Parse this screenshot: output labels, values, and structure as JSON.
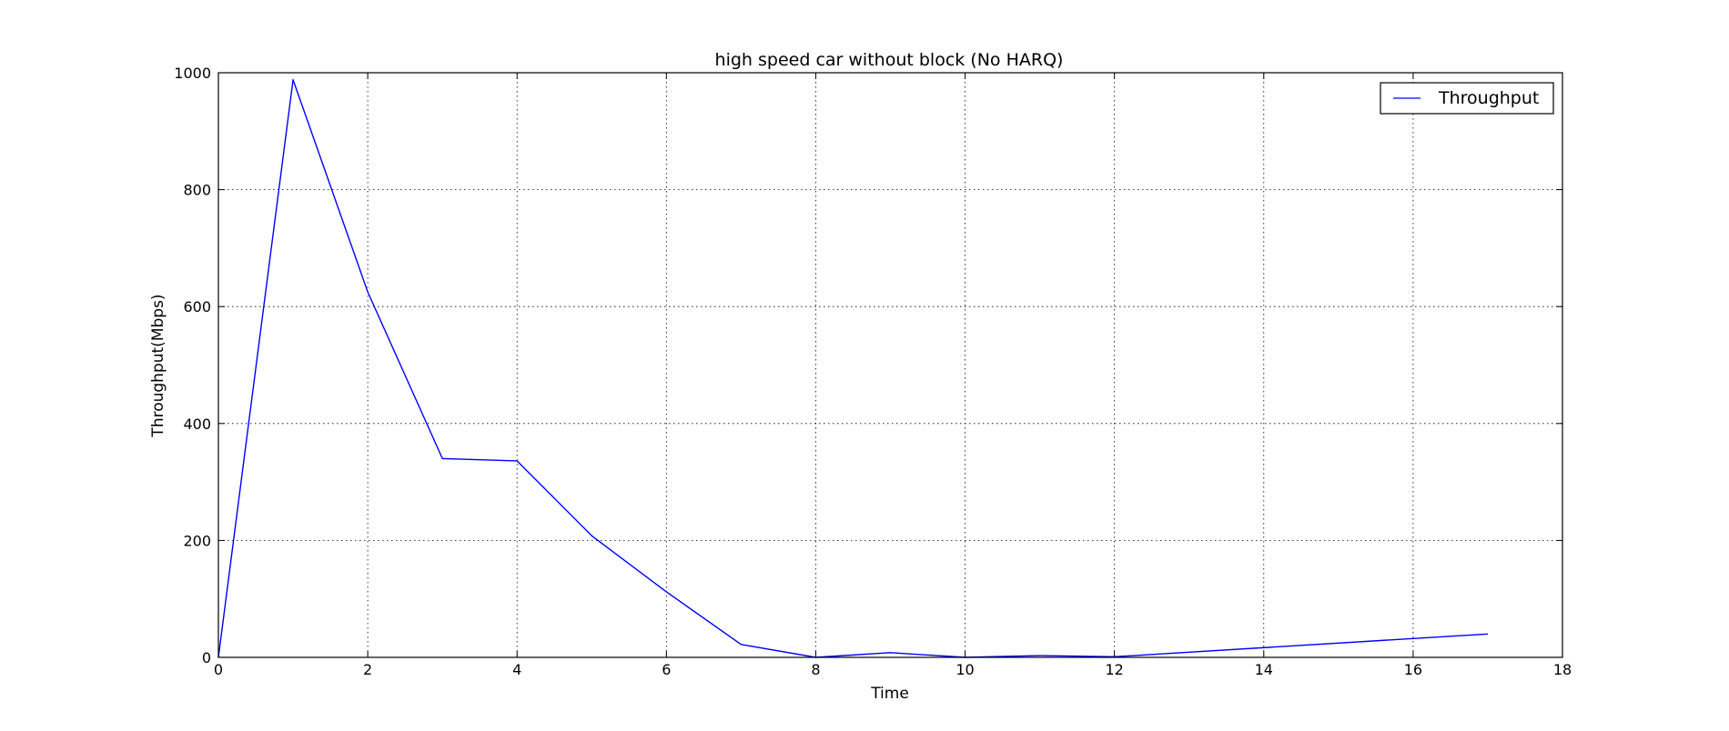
{
  "chart_data": {
    "type": "line",
    "title": "high speed car without block (No HARQ)",
    "xlabel": "Time",
    "ylabel": "Throughput(Mbps)",
    "xlim": [
      0,
      18
    ],
    "ylim": [
      0,
      1000
    ],
    "xticks": [
      0,
      2,
      4,
      6,
      8,
      10,
      12,
      14,
      16,
      18
    ],
    "yticks": [
      0,
      200,
      400,
      600,
      800,
      1000
    ],
    "grid": true,
    "legend_position": "top-right",
    "series": [
      {
        "name": "Throughput",
        "color": "#0000ff",
        "x": [
          0,
          1,
          2,
          3,
          4,
          5,
          6,
          7,
          8,
          9,
          10,
          11,
          12,
          17
        ],
        "y": [
          0,
          988,
          625,
          340,
          336,
          208,
          112,
          22,
          0,
          8,
          0,
          3,
          1,
          40
        ]
      }
    ]
  }
}
